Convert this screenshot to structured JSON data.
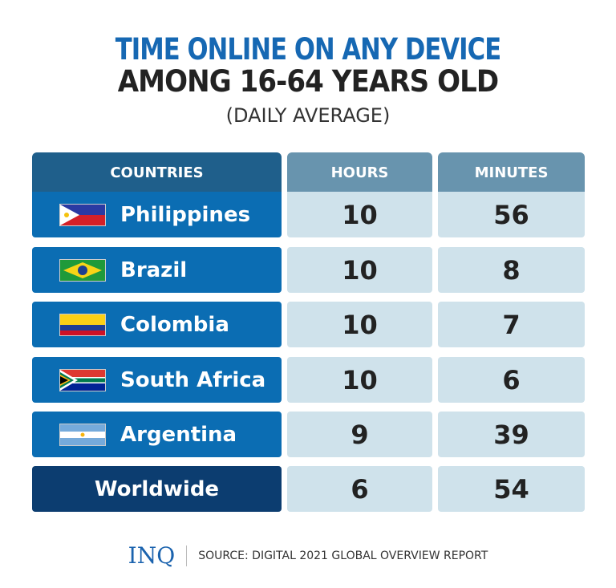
{
  "title_line1": "TIME ONLINE ON ANY DEVICE",
  "title_line2": "AMONG 16-64 YEARS OLD",
  "subtitle": "(DAILY AVERAGE)",
  "colors": {
    "title_blue": "#1668b3",
    "header_countries": "#1f5f8b",
    "header_values": "#6894ae",
    "row_blue": "#0b6db3",
    "worldwide": "#0c3d70",
    "value_cell": "#cfe2eb"
  },
  "chart_data": {
    "type": "table",
    "columns": [
      "COUNTRIES",
      "HOURS",
      "MINUTES"
    ],
    "rows": [
      {
        "country": "Philippines",
        "flag": "philippines-flag-icon",
        "hours": "10",
        "minutes": "56"
      },
      {
        "country": "Brazil",
        "flag": "brazil-flag-icon",
        "hours": "10",
        "minutes": "8"
      },
      {
        "country": "Colombia",
        "flag": "colombia-flag-icon",
        "hours": "10",
        "minutes": "7"
      },
      {
        "country": "South Africa",
        "flag": "south-africa-flag-icon",
        "hours": "10",
        "minutes": "6"
      },
      {
        "country": "Argentina",
        "flag": "argentina-flag-icon",
        "hours": "9",
        "minutes": "39"
      },
      {
        "country": "Worldwide",
        "hours": "6",
        "minutes": "54"
      }
    ]
  },
  "footer": {
    "logo": "INQ",
    "source": "SOURCE: DIGITAL 2021 GLOBAL OVERVIEW REPORT"
  }
}
